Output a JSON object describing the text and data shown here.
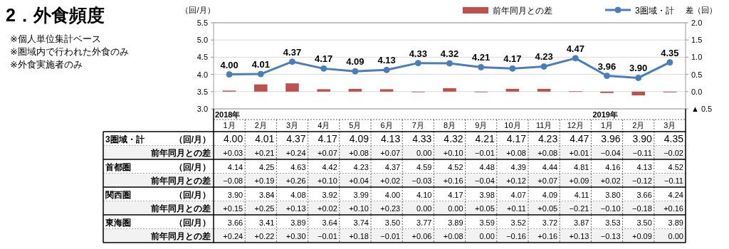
{
  "chart_data": [
    {
      "type": "line",
      "title": "2．外食頻度",
      "ylabel": "（回/月）",
      "y2label": "差（回）",
      "annotations": [
        "※個人単位集計ベース",
        "※圏域内で行われた外食のみ",
        "※外食実施者のみ",
        "2018年",
        "2019年"
      ],
      "categories": [
        "1月",
        "2月",
        "3月",
        "4月",
        "5月",
        "6月",
        "7月",
        "8月",
        "9月",
        "10月",
        "11月",
        "12月",
        "1月",
        "2月",
        "3月"
      ],
      "ylim": [
        3.0,
        5.5
      ],
      "yticks": [
        {
          "value": 3.0,
          "label": "3.0"
        },
        {
          "value": 3.5,
          "label": "3.5"
        },
        {
          "value": 4.0,
          "label": "4.0"
        },
        {
          "value": 4.5,
          "label": "4.5"
        },
        {
          "value": 5.0,
          "label": "5.0"
        },
        {
          "value": 5.5,
          "label": "5.5"
        }
      ],
      "y2lim": [
        -0.5,
        2.0
      ],
      "y2ticks": [
        {
          "value": -0.5,
          "label": "▲ 0.5"
        },
        {
          "value": 0.0,
          "label": "0.0"
        },
        {
          "value": 0.5,
          "label": "0.5"
        },
        {
          "value": 1.0,
          "label": "1.0"
        },
        {
          "value": 1.5,
          "label": "1.5"
        },
        {
          "value": 2.0,
          "label": "2.0"
        }
      ],
      "grid": "y",
      "legend": "top",
      "marker": "circle",
      "line_style": "solid",
      "series": [
        {
          "name": "3圏域・計",
          "type": "line",
          "color": "#4a7ebb",
          "values": [
            4.0,
            4.01,
            4.37,
            4.17,
            4.09,
            4.13,
            4.33,
            4.32,
            4.21,
            4.17,
            4.23,
            4.47,
            3.96,
            3.9,
            4.35
          ],
          "value_labels": [
            "4.00",
            "4.01",
            "4.37",
            "4.17",
            "4.09",
            "4.13",
            "4.33",
            "4.32",
            "4.21",
            "4.17",
            "4.23",
            "4.47",
            "3.96",
            "3.90",
            "4.35"
          ]
        },
        {
          "name": "前年同月との差",
          "type": "bar",
          "axis": "y2",
          "color": "#c0504d",
          "values": [
            0.03,
            0.21,
            0.24,
            0.07,
            0.08,
            0.07,
            0.0,
            0.1,
            -0.01,
            0.08,
            0.08,
            0.01,
            -0.04,
            -0.11,
            -0.02
          ],
          "value_labels": [
            "+0.03",
            "+0.21",
            "+0.24",
            "+0.07",
            "+0.08",
            "+0.07",
            "0.00",
            "+0.10",
            "−0.01",
            "+0.08",
            "+0.08",
            "+0.01",
            "−0.04",
            "−0.11",
            "−0.02"
          ]
        }
      ]
    },
    {
      "type": "other",
      "title": "首都圏",
      "ylabel": "（回/月）",
      "subtitle": "前年同月との差",
      "annotations": [
        "4.14",
        "4.25",
        "4.63",
        "4.42",
        "4.23",
        "4.37",
        "4.59",
        "4.52",
        "4.48",
        "4.39",
        "4.44",
        "4.81",
        "4.16",
        "4.13",
        "4.52",
        "−0.08",
        "+0.19",
        "+0.26",
        "+0.10",
        "+0.04",
        "+0.02",
        "−0.03",
        "+0.16",
        "−0.04",
        "+0.12",
        "+0.07",
        "+0.09",
        "+0.02",
        "−0.12",
        "−0.11"
      ]
    },
    {
      "type": "other",
      "title": "関西圏",
      "ylabel": "（回/月）",
      "subtitle": "前年同月との差",
      "annotations": [
        "3.90",
        "3.84",
        "4.08",
        "3.92",
        "3.99",
        "4.00",
        "4.10",
        "4.17",
        "3.98",
        "4.07",
        "4.09",
        "4.11",
        "3.80",
        "3.66",
        "4.24",
        "+0.15",
        "+0.25",
        "+0.13",
        "+0.02",
        "+0.10",
        "+0.23",
        "0.00",
        "0.00",
        "+0.05",
        "+0.11",
        "+0.05",
        "−0.21",
        "−0.10",
        "−0.18",
        "+0.16"
      ]
    },
    {
      "type": "other",
      "title": "東海圏",
      "ylabel": "（回/月）",
      "subtitle": "前年同月との差",
      "annotations": [
        "3.66",
        "3.41",
        "3.89",
        "3.64",
        "3.74",
        "3.50",
        "3.77",
        "3.89",
        "3.59",
        "3.52",
        "3.72",
        "3.87",
        "3.53",
        "3.50",
        "3.89",
        "+0.24",
        "+0.22",
        "+0.30",
        "−0.01",
        "+0.18",
        "−0.01",
        "+0.06",
        "+0.08",
        "0.00",
        "−0.16",
        "+0.16",
        "+0.13",
        "−0.13",
        "+0.09",
        "0.00"
      ]
    }
  ]
}
